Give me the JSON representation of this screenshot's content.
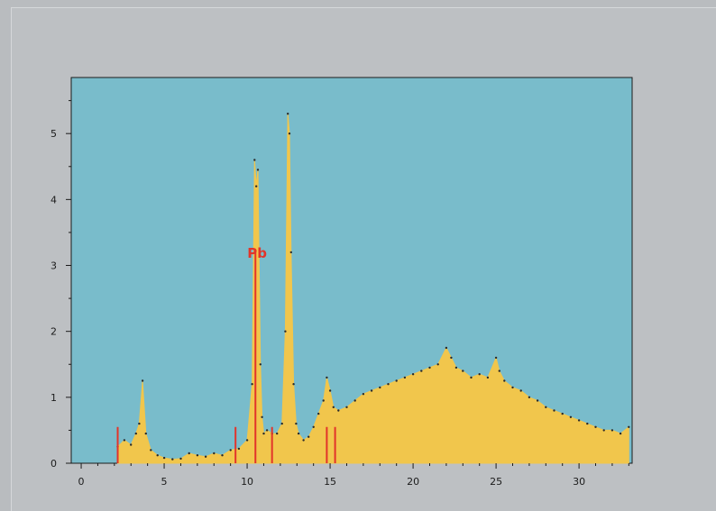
{
  "colors": {
    "page_background": "#b9bcbf",
    "plot_background": "#79bccb",
    "spectrum_fill": "#f1c64c",
    "marker_color": "#e2342a",
    "axis_color": "#1b1b1b"
  },
  "chart_data": {
    "type": "area",
    "title": "",
    "xlabel": "",
    "ylabel": "",
    "xlim": [
      -0.6,
      33.2
    ],
    "ylim": [
      0,
      5.85
    ],
    "grid": false,
    "x_ticks": [
      0,
      5,
      10,
      15,
      20,
      25,
      30
    ],
    "y_ticks": [
      0,
      1,
      2,
      3,
      4,
      5
    ],
    "x_tick_labels": [
      "0",
      "5",
      "10",
      "15",
      "20",
      "25",
      "30"
    ],
    "y_tick_labels": [
      "0",
      "1",
      "2",
      "3",
      "4",
      "5"
    ],
    "series": [
      {
        "x": [
          2.2,
          2.6,
          3.0,
          3.3,
          3.5,
          3.7,
          3.9,
          4.2,
          4.6,
          5.0,
          5.5,
          6.0,
          6.5,
          7.0,
          7.5,
          8.0,
          8.5,
          9.0,
          9.5,
          10.0,
          10.3,
          10.45,
          10.55,
          10.65,
          10.8,
          10.9,
          11.0,
          11.2,
          11.5,
          11.8,
          12.1,
          12.3,
          12.45,
          12.55,
          12.65,
          12.8,
          12.95,
          13.1,
          13.4,
          13.7,
          14.0,
          14.3,
          14.6,
          14.8,
          15.0,
          15.2,
          15.5,
          16.0,
          16.5,
          17.0,
          17.5,
          18.0,
          18.5,
          19.0,
          19.5,
          20.0,
          20.5,
          21.0,
          21.5,
          22.0,
          22.3,
          22.6,
          23.0,
          23.5,
          24.0,
          24.5,
          25.0,
          25.2,
          25.5,
          26.0,
          26.5,
          27.0,
          27.5,
          28.0,
          28.5,
          29.0,
          29.5,
          30.0,
          30.5,
          31.0,
          31.5,
          32.0,
          32.5,
          33.0
        ],
        "y": [
          0.25,
          0.35,
          0.28,
          0.45,
          0.6,
          1.25,
          0.45,
          0.2,
          0.12,
          0.08,
          0.06,
          0.07,
          0.15,
          0.12,
          0.1,
          0.15,
          0.12,
          0.2,
          0.22,
          0.35,
          1.2,
          4.6,
          4.2,
          4.45,
          1.5,
          0.7,
          0.45,
          0.5,
          0.45,
          0.45,
          0.6,
          2.0,
          5.3,
          5.0,
          3.2,
          1.2,
          0.6,
          0.45,
          0.35,
          0.4,
          0.55,
          0.75,
          0.95,
          1.3,
          1.1,
          0.85,
          0.8,
          0.85,
          0.95,
          1.05,
          1.1,
          1.15,
          1.2,
          1.25,
          1.3,
          1.35,
          1.4,
          1.45,
          1.5,
          1.75,
          1.6,
          1.45,
          1.4,
          1.3,
          1.35,
          1.3,
          1.6,
          1.4,
          1.25,
          1.15,
          1.1,
          1.0,
          0.95,
          0.85,
          0.8,
          0.75,
          0.7,
          0.65,
          0.6,
          0.55,
          0.5,
          0.5,
          0.45,
          0.55
        ]
      }
    ],
    "marker_lines": [
      {
        "x": 2.2,
        "height": 0.55
      },
      {
        "x": 9.3,
        "height": 0.55
      },
      {
        "x": 10.5,
        "height": 3.2
      },
      {
        "x": 11.5,
        "height": 0.55
      },
      {
        "x": 14.8,
        "height": 0.55
      },
      {
        "x": 15.3,
        "height": 0.55
      }
    ],
    "annotations": [
      {
        "text": "Pb",
        "x": 10.6,
        "y": 3.2
      }
    ]
  }
}
